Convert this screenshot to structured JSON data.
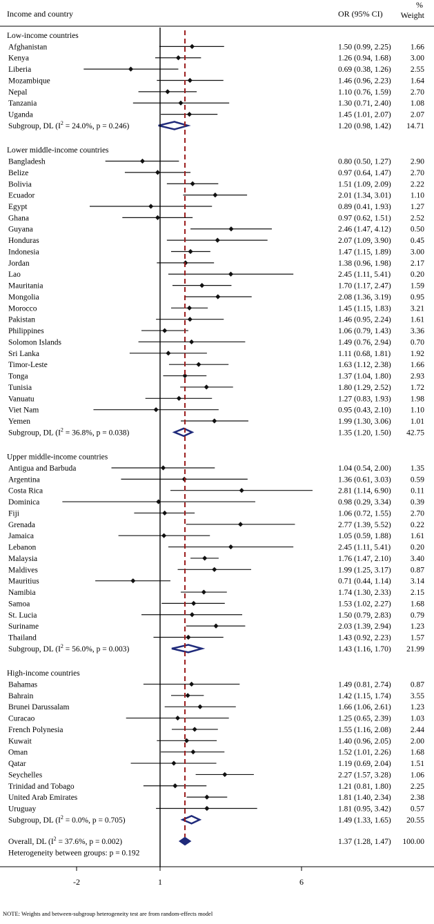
{
  "header": {
    "col_label": "Income and country",
    "col_or": "OR (95% CI)",
    "col_pct": "%",
    "col_weight": "Weight"
  },
  "footer": {
    "heterogeneity": "Heterogeneity between groups: p = 0.192",
    "note": "NOTE: Weights and between-subgroup heterogeneity test are from random-effects model"
  },
  "colors": {
    "point": "#111111",
    "diamond": "#1f2a7a",
    "ref_line": "#9b1c1c",
    "axis": "#000000"
  },
  "chart_data": {
    "type": "forest",
    "x_scale": "log",
    "xlim": [
      -2,
      8
    ],
    "ticks": [
      -2,
      1,
      6
    ],
    "null_line": 1,
    "overall_line": 1.37,
    "groups": [
      {
        "title": "Low-income countries",
        "rows": [
          {
            "label": "Afghanistan",
            "or": 1.5,
            "lo": 0.99,
            "hi": 2.25,
            "ci": "1.50 (0.99, 2.25)",
            "weight": "1.66"
          },
          {
            "label": "Kenya",
            "or": 1.26,
            "lo": 0.94,
            "hi": 1.68,
            "ci": "1.26 (0.94, 1.68)",
            "weight": "3.00"
          },
          {
            "label": "Liberia",
            "or": 0.69,
            "lo": 0.38,
            "hi": 1.26,
            "ci": "0.69 (0.38, 1.26)",
            "weight": "2.55"
          },
          {
            "label": "Mozambique",
            "or": 1.46,
            "lo": 0.96,
            "hi": 2.23,
            "ci": "1.46 (0.96, 2.23)",
            "weight": "1.64"
          },
          {
            "label": "Nepal",
            "or": 1.1,
            "lo": 0.76,
            "hi": 1.59,
            "ci": "1.10 (0.76, 1.59)",
            "weight": "2.70"
          },
          {
            "label": "Tanzania",
            "or": 1.3,
            "lo": 0.71,
            "hi": 2.4,
            "ci": "1.30 (0.71, 2.40)",
            "weight": "1.08"
          },
          {
            "label": "Uganda",
            "or": 1.45,
            "lo": 1.01,
            "hi": 2.07,
            "ci": "1.45 (1.01, 2.07)",
            "weight": "2.07"
          }
        ],
        "subgroup": {
          "label_pre": "Subgroup, DL (I",
          "label_sup": "2",
          "label_post": " = 24.0%, p = 0.246)",
          "or": 1.2,
          "lo": 0.98,
          "hi": 1.42,
          "ci": "1.20 (0.98, 1.42)",
          "weight": "14.71"
        }
      },
      {
        "title": "Lower middle-income countries",
        "rows": [
          {
            "label": "Bangladesh",
            "or": 0.8,
            "lo": 0.5,
            "hi": 1.27,
            "ci": "0.80 (0.50, 1.27)",
            "weight": "2.90"
          },
          {
            "label": "Belize",
            "or": 0.97,
            "lo": 0.64,
            "hi": 1.47,
            "ci": "0.97 (0.64, 1.47)",
            "weight": "2.70"
          },
          {
            "label": "Bolivia",
            "or": 1.51,
            "lo": 1.09,
            "hi": 2.09,
            "ci": "1.51 (1.09, 2.09)",
            "weight": "2.22"
          },
          {
            "label": "Ecuador",
            "or": 2.01,
            "lo": 1.34,
            "hi": 3.01,
            "ci": "2.01 (1.34, 3.01)",
            "weight": "1.10"
          },
          {
            "label": "Egypt",
            "or": 0.89,
            "lo": 0.41,
            "hi": 1.93,
            "ci": "0.89 (0.41, 1.93)",
            "weight": "1.27"
          },
          {
            "label": "Ghana",
            "or": 0.97,
            "lo": 0.62,
            "hi": 1.51,
            "ci": "0.97 (0.62, 1.51)",
            "weight": "2.52"
          },
          {
            "label": "Guyana",
            "or": 2.46,
            "lo": 1.47,
            "hi": 4.12,
            "ci": "2.46 (1.47, 4.12)",
            "weight": "0.50"
          },
          {
            "label": "Honduras",
            "or": 2.07,
            "lo": 1.09,
            "hi": 3.9,
            "ci": "2.07 (1.09, 3.90)",
            "weight": "0.45"
          },
          {
            "label": "Indonesia",
            "or": 1.47,
            "lo": 1.15,
            "hi": 1.89,
            "ci": "1.47 (1.15, 1.89)",
            "weight": "3.00"
          },
          {
            "label": "Jordan",
            "or": 1.38,
            "lo": 0.96,
            "hi": 1.98,
            "ci": "1.38 (0.96, 1.98)",
            "weight": "2.17"
          },
          {
            "label": "Lao",
            "or": 2.45,
            "lo": 1.11,
            "hi": 5.41,
            "ci": "2.45 (1.11, 5.41)",
            "weight": "0.20"
          },
          {
            "label": "Mauritania",
            "or": 1.7,
            "lo": 1.17,
            "hi": 2.47,
            "ci": "1.70 (1.17, 2.47)",
            "weight": "1.59"
          },
          {
            "label": "Mongolia",
            "or": 2.08,
            "lo": 1.36,
            "hi": 3.19,
            "ci": "2.08 (1.36, 3.19)",
            "weight": "0.95"
          },
          {
            "label": "Morocco",
            "or": 1.45,
            "lo": 1.15,
            "hi": 1.83,
            "ci": "1.45 (1.15, 1.83)",
            "weight": "3.21"
          },
          {
            "label": "Pakistan",
            "or": 1.46,
            "lo": 0.95,
            "hi": 2.24,
            "ci": "1.46 (0.95, 2.24)",
            "weight": "1.61"
          },
          {
            "label": "Philippines",
            "or": 1.06,
            "lo": 0.79,
            "hi": 1.43,
            "ci": "1.06 (0.79, 1.43)",
            "weight": "3.36"
          },
          {
            "label": "Solomon Islands",
            "or": 1.49,
            "lo": 0.76,
            "hi": 2.94,
            "ci": "1.49 (0.76, 2.94)",
            "weight": "0.70"
          },
          {
            "label": "Sri Lanka",
            "or": 1.11,
            "lo": 0.68,
            "hi": 1.81,
            "ci": "1.11 (0.68, 1.81)",
            "weight": "1.92"
          },
          {
            "label": "Timor-Leste",
            "or": 1.63,
            "lo": 1.12,
            "hi": 2.38,
            "ci": "1.63 (1.12, 2.38)",
            "weight": "1.66"
          },
          {
            "label": "Tonga",
            "or": 1.37,
            "lo": 1.04,
            "hi": 1.8,
            "ci": "1.37 (1.04, 1.80)",
            "weight": "2.93"
          },
          {
            "label": "Tunisia",
            "or": 1.8,
            "lo": 1.29,
            "hi": 2.52,
            "ci": "1.80 (1.29, 2.52)",
            "weight": "1.72"
          },
          {
            "label": "Vanuatu",
            "or": 1.27,
            "lo": 0.83,
            "hi": 1.93,
            "ci": "1.27 (0.83, 1.93)",
            "weight": "1.98"
          },
          {
            "label": "Viet Nam",
            "or": 0.95,
            "lo": 0.43,
            "hi": 2.1,
            "ci": "0.95 (0.43, 2.10)",
            "weight": "1.10"
          },
          {
            "label": "Yemen",
            "or": 1.99,
            "lo": 1.3,
            "hi": 3.06,
            "ci": "1.99 (1.30, 3.06)",
            "weight": "1.01"
          }
        ],
        "subgroup": {
          "label_pre": "Subgroup, DL (I",
          "label_sup": "2",
          "label_post": " = 36.8%, p = 0.038)",
          "or": 1.35,
          "lo": 1.2,
          "hi": 1.5,
          "ci": "1.35 (1.20, 1.50)",
          "weight": "42.75"
        }
      },
      {
        "title": "Upper middle-income countries",
        "rows": [
          {
            "label": "Antigua and Barbuda",
            "or": 1.04,
            "lo": 0.54,
            "hi": 2.0,
            "ci": "1.04 (0.54, 2.00)",
            "weight": "1.35"
          },
          {
            "label": "Argentina",
            "or": 1.36,
            "lo": 0.61,
            "hi": 3.03,
            "ci": "1.36 (0.61, 3.03)",
            "weight": "0.59"
          },
          {
            "label": "Costa Rica",
            "or": 2.81,
            "lo": 1.14,
            "hi": 6.9,
            "ci": "2.81 (1.14, 6.90)",
            "weight": "0.11"
          },
          {
            "label": "Dominica",
            "or": 0.98,
            "lo": 0.29,
            "hi": 3.34,
            "ci": "0.98 (0.29, 3.34)",
            "weight": "0.39"
          },
          {
            "label": "Fiji",
            "or": 1.06,
            "lo": 0.72,
            "hi": 1.55,
            "ci": "1.06 (0.72, 1.55)",
            "weight": "2.70"
          },
          {
            "label": "Grenada",
            "or": 2.77,
            "lo": 1.39,
            "hi": 5.52,
            "ci": "2.77 (1.39, 5.52)",
            "weight": "0.22"
          },
          {
            "label": "Jamaica",
            "or": 1.05,
            "lo": 0.59,
            "hi": 1.88,
            "ci": "1.05 (0.59, 1.88)",
            "weight": "1.61"
          },
          {
            "label": "Lebanon",
            "or": 2.45,
            "lo": 1.11,
            "hi": 5.41,
            "ci": "2.45 (1.11, 5.41)",
            "weight": "0.20"
          },
          {
            "label": "Malaysia",
            "or": 1.76,
            "lo": 1.47,
            "hi": 2.1,
            "ci": "1.76 (1.47, 2.10)",
            "weight": "3.40"
          },
          {
            "label": "Maldives",
            "or": 1.99,
            "lo": 1.25,
            "hi": 3.17,
            "ci": "1.99 (1.25, 3.17)",
            "weight": "0.87"
          },
          {
            "label": "Mauritius",
            "or": 0.71,
            "lo": 0.44,
            "hi": 1.14,
            "ci": "0.71 (0.44, 1.14)",
            "weight": "3.14"
          },
          {
            "label": "Namibia",
            "or": 1.74,
            "lo": 1.3,
            "hi": 2.33,
            "ci": "1.74 (1.30, 2.33)",
            "weight": "2.15"
          },
          {
            "label": "Samoa",
            "or": 1.53,
            "lo": 1.02,
            "hi": 2.27,
            "ci": "1.53 (1.02, 2.27)",
            "weight": "1.68"
          },
          {
            "label": "St. Lucia",
            "or": 1.5,
            "lo": 0.79,
            "hi": 2.83,
            "ci": "1.50 (0.79, 2.83)",
            "weight": "0.79"
          },
          {
            "label": "Suriname",
            "or": 2.03,
            "lo": 1.39,
            "hi": 2.94,
            "ci": "2.03 (1.39, 2.94)",
            "weight": "1.23"
          },
          {
            "label": "Thailand",
            "or": 1.43,
            "lo": 0.92,
            "hi": 2.23,
            "ci": "1.43 (0.92, 2.23)",
            "weight": "1.57"
          }
        ],
        "subgroup": {
          "label_pre": "Subgroup, DL (I",
          "label_sup": "2",
          "label_post": " = 56.0%, p = 0.003)",
          "or": 1.43,
          "lo": 1.16,
          "hi": 1.7,
          "ci": "1.43 (1.16, 1.70)",
          "weight": "21.99"
        }
      },
      {
        "title": "High-income countries",
        "rows": [
          {
            "label": "Bahamas",
            "or": 1.49,
            "lo": 0.81,
            "hi": 2.74,
            "ci": "1.49 (0.81, 2.74)",
            "weight": "0.87"
          },
          {
            "label": "Bahrain",
            "or": 1.42,
            "lo": 1.15,
            "hi": 1.74,
            "ci": "1.42 (1.15, 1.74)",
            "weight": "3.55"
          },
          {
            "label": "Brunei Darussalam",
            "or": 1.66,
            "lo": 1.06,
            "hi": 2.61,
            "ci": "1.66 (1.06, 2.61)",
            "weight": "1.23"
          },
          {
            "label": "Curacao",
            "or": 1.25,
            "lo": 0.65,
            "hi": 2.39,
            "ci": "1.25 (0.65, 2.39)",
            "weight": "1.03"
          },
          {
            "label": "French Polynesia",
            "or": 1.55,
            "lo": 1.16,
            "hi": 2.08,
            "ci": "1.55 (1.16, 2.08)",
            "weight": "2.44"
          },
          {
            "label": "Kuwait",
            "or": 1.4,
            "lo": 0.96,
            "hi": 2.05,
            "ci": "1.40 (0.96, 2.05)",
            "weight": "2.00"
          },
          {
            "label": "Oman",
            "or": 1.52,
            "lo": 1.01,
            "hi": 2.26,
            "ci": "1.52 (1.01, 2.26)",
            "weight": "1.68"
          },
          {
            "label": "Qatar",
            "or": 1.19,
            "lo": 0.69,
            "hi": 2.04,
            "ci": "1.19 (0.69, 2.04)",
            "weight": "1.51"
          },
          {
            "label": "Seychelles",
            "or": 2.27,
            "lo": 1.57,
            "hi": 3.28,
            "ci": "2.27 (1.57, 3.28)",
            "weight": "1.06"
          },
          {
            "label": "Trinidad and Tobago",
            "or": 1.21,
            "lo": 0.81,
            "hi": 1.8,
            "ci": "1.21 (0.81, 1.80)",
            "weight": "2.25"
          },
          {
            "label": "United Arab Emirates",
            "or": 1.81,
            "lo": 1.4,
            "hi": 2.34,
            "ci": "1.81 (1.40, 2.34)",
            "weight": "2.38"
          },
          {
            "label": "Uruguay",
            "or": 1.81,
            "lo": 0.95,
            "hi": 3.42,
            "ci": "1.81 (0.95, 3.42)",
            "weight": "0.57"
          }
        ],
        "subgroup": {
          "label_pre": "Subgroup, DL (I",
          "label_sup": "2",
          "label_post": " = 0.0%, p = 0.705)",
          "or": 1.49,
          "lo": 1.33,
          "hi": 1.65,
          "ci": "1.49 (1.33, 1.65)",
          "weight": "20.55"
        }
      }
    ],
    "overall": {
      "label_pre": "Overall, DL (I",
      "label_sup": "2",
      "label_post": " = 37.6%, p = 0.002)",
      "or": 1.37,
      "lo": 1.28,
      "hi": 1.47,
      "ci": "1.37 (1.28, 1.47)",
      "weight": "100.00"
    }
  }
}
